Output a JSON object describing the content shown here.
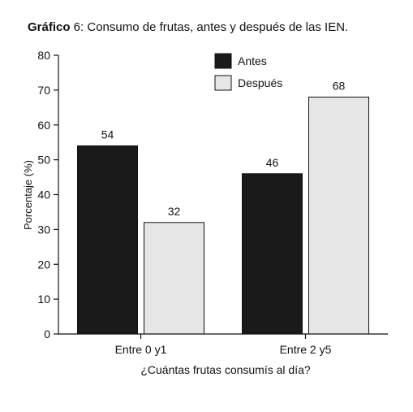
{
  "chart_data": {
    "type": "bar",
    "title_prefix": "Gráfico",
    "title_rest": " 6: Consumo de frutas, antes y después de las IEN.",
    "xlabel": "¿Cuántas frutas consumís al día?",
    "ylabel": "Porcentaje (%)",
    "ylim": [
      0,
      80
    ],
    "yticks": [
      0,
      10,
      20,
      30,
      40,
      50,
      60,
      70,
      80
    ],
    "categories": [
      "Entre 0 y1",
      "Entre 2 y5"
    ],
    "series": [
      {
        "name": "Antes",
        "values": [
          54,
          46
        ],
        "color": "#1a1a1a"
      },
      {
        "name": "Después",
        "values": [
          32,
          68
        ],
        "color": "#e6e6e6"
      }
    ],
    "legend_position": "top-right",
    "grid": false
  }
}
